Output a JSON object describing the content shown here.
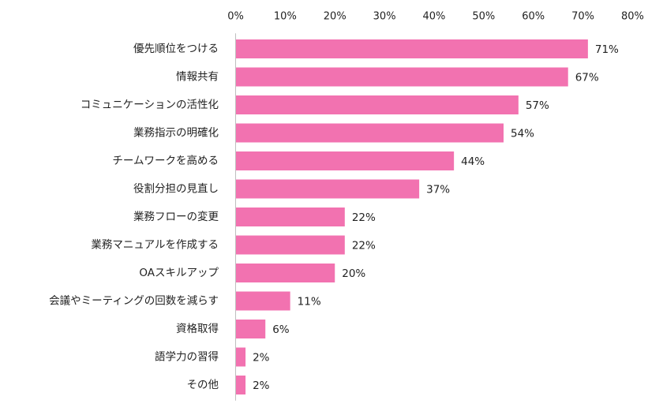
{
  "chart_data": {
    "type": "bar",
    "orientation": "horizontal",
    "categories": [
      "優先順位をつける",
      "情報共有",
      "コミュニケーションの活性化",
      "業務指示の明確化",
      "チームワークを高める",
      "役割分担の見直し",
      "業務フローの変更",
      "業務マニュアルを作成する",
      "OAスキルアップ",
      "会議やミーティングの回数を減らす",
      "資格取得",
      "語学力の習得",
      "その他"
    ],
    "values": [
      71,
      67,
      57,
      54,
      44,
      37,
      22,
      22,
      20,
      11,
      6,
      2,
      2
    ],
    "value_labels": [
      "71%",
      "67%",
      "57%",
      "54%",
      "44%",
      "37%",
      "22%",
      "22%",
      "20%",
      "11%",
      "6%",
      "2%",
      "2%"
    ],
    "xticks": [
      "0%",
      "10%",
      "20%",
      "30%",
      "40%",
      "50%",
      "60%",
      "70%",
      "80%"
    ],
    "xlim": [
      0,
      80
    ],
    "xaxis_position": "top",
    "grid": false,
    "legend": "none",
    "bar_color": "#f272b0",
    "title": "",
    "xlabel": "",
    "ylabel": ""
  }
}
